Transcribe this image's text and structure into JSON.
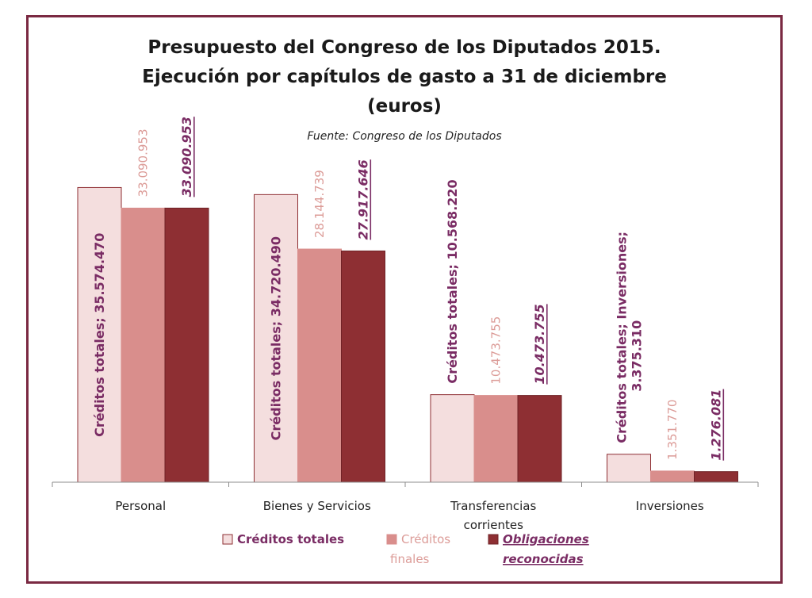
{
  "colors": {
    "border": "#7a2942",
    "creditos_totales": "#f4dede",
    "creditos_finales": "#d98e8c",
    "obligaciones": "#8e2f33",
    "label_totales": "#7a2c64",
    "label_finales": "#dc9c98",
    "label_obligaciones": "#7a2c64"
  },
  "chart_data": {
    "type": "bar",
    "title": [
      "Presupuesto del Congreso de los Diputados 2015.",
      "Ejecución por capítulos de gasto a 31 de diciembre",
      "(euros)"
    ],
    "subtitle": "Fuente:  Congreso de los Diputados",
    "categories": [
      "Personal",
      "Bienes y Servicios",
      "Transferencias corrientes",
      "Inversiones"
    ],
    "series": [
      {
        "name": "Créditos totales",
        "values": [
          35574470,
          34720490,
          10568220,
          3375310
        ],
        "labels": [
          "Créditos totales; 35.574.470",
          "Créditos totales; 34.720.490",
          "Créditos totales; 10.568.220",
          "Créditos totales; Inversiones; 3.375.310"
        ]
      },
      {
        "name": "Créditos finales",
        "values": [
          33090953,
          28144739,
          10473755,
          1351770
        ],
        "labels": [
          "33.090.953",
          "28.144.739",
          "10.473.755",
          "1.351.770"
        ]
      },
      {
        "name": "Obligaciones reconocidas",
        "values": [
          33090953,
          27917646,
          10473755,
          1276081
        ],
        "labels": [
          "33.090.953",
          "27.917.646",
          "10.473.755",
          "1.276.081"
        ]
      }
    ],
    "ylim": [
      0,
      36000000
    ],
    "grid": false,
    "legend": {
      "position": "bottom",
      "items": [
        {
          "lines": [
            "Créditos totales"
          ]
        },
        {
          "lines": [
            "Créditos",
            "finales"
          ]
        },
        {
          "lines": [
            "Obligaciones",
            "reconocidas"
          ]
        }
      ]
    }
  }
}
